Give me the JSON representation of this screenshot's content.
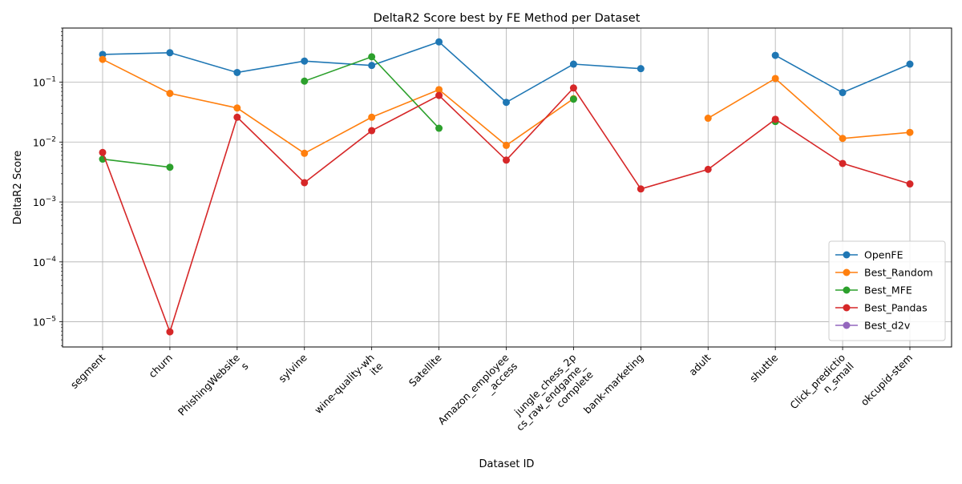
{
  "chart_data": {
    "type": "line",
    "title": "DeltaR2 Score best by FE Method per Dataset",
    "xlabel": "Dataset ID",
    "ylabel": "DeltaR2 Score",
    "yscale": "log",
    "ylim": [
      3.8e-06,
      0.8
    ],
    "y_ticks": [
      {
        "value": 1e-05,
        "mantissa": "10",
        "exp": "−5"
      },
      {
        "value": 0.0001,
        "mantissa": "10",
        "exp": "−4"
      },
      {
        "value": 0.001,
        "mantissa": "10",
        "exp": "−3"
      },
      {
        "value": 0.01,
        "mantissa": "10",
        "exp": "−2"
      },
      {
        "value": 0.1,
        "mantissa": "10",
        "exp": "−1"
      }
    ],
    "grid": true,
    "legend_position": "lower-right",
    "categories": [
      [
        "segment"
      ],
      [
        "churn"
      ],
      [
        "PhishingWebsite",
        "s"
      ],
      [
        "sylvine"
      ],
      [
        "wine-quality-wh",
        "ite"
      ],
      [
        "Satellite"
      ],
      [
        "Amazon_employee",
        "_access"
      ],
      [
        "jungle_chess_2p",
        "cs_raw_endgame_",
        "complete"
      ],
      [
        "bank-marketing"
      ],
      [
        "adult"
      ],
      [
        "shuttle"
      ],
      [
        "Click_predictio",
        "n_small"
      ],
      [
        "okcupid-stem"
      ]
    ],
    "series": [
      {
        "name": "OpenFE",
        "color": "#1f77b4",
        "values": [
          0.29,
          0.31,
          0.145,
          0.225,
          0.19,
          0.47,
          0.046,
          0.2,
          0.168,
          null,
          0.28,
          0.067,
          0.2
        ]
      },
      {
        "name": "Best_Random",
        "color": "#ff7f0e",
        "values": [
          0.24,
          0.065,
          0.037,
          0.0065,
          0.026,
          0.075,
          0.0088,
          0.053,
          null,
          0.025,
          0.115,
          0.0115,
          0.0145
        ]
      },
      {
        "name": "Best_MFE",
        "color": "#2ca02c",
        "values": [
          0.0052,
          0.0038,
          null,
          0.104,
          0.265,
          0.017,
          null,
          0.052,
          null,
          null,
          0.022,
          null,
          null
        ]
      },
      {
        "name": "Best_Pandas",
        "color": "#d62728",
        "values": [
          0.0067,
          6.8e-06,
          0.026,
          0.0021,
          0.0155,
          0.06,
          0.005,
          0.08,
          0.00165,
          0.0035,
          0.024,
          0.0044,
          0.002
        ]
      },
      {
        "name": "Best_d2v",
        "color": "#9467bd",
        "values": [
          null,
          null,
          null,
          null,
          null,
          null,
          null,
          null,
          null,
          null,
          null,
          null,
          null
        ]
      }
    ]
  }
}
